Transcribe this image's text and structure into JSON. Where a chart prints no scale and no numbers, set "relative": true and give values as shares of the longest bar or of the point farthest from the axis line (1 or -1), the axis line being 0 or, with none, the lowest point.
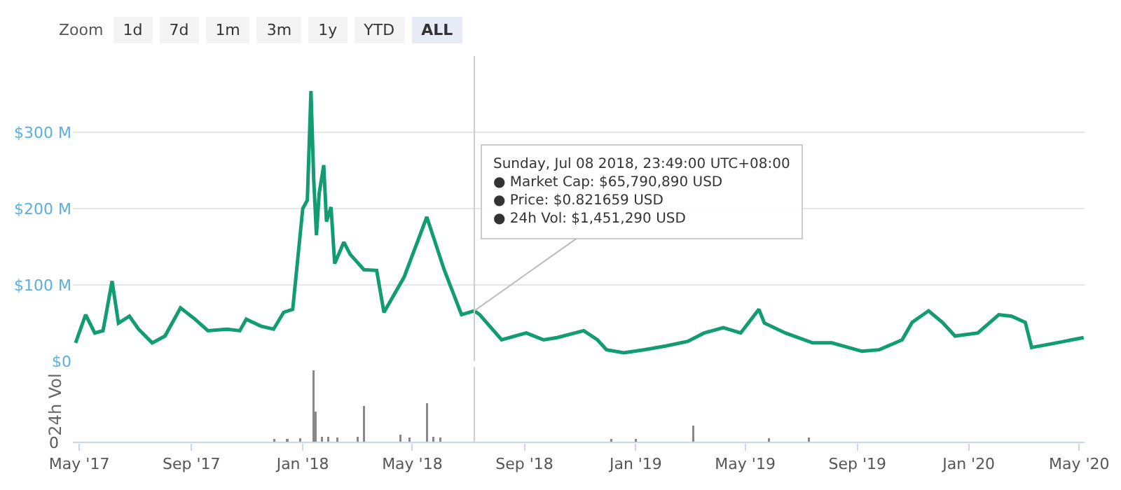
{
  "chart_data": [
    {
      "type": "line",
      "annotations": [
        "Zoom",
        "1d",
        "7d",
        "1m",
        "3m",
        "1y",
        "YTD",
        "ALL",
        {
          "text": "Sunday, Jul 08 2018, 23:49:00 UTC+08:00\n● Market Cap: $65,790,890 USD\n● Price: $0.821659 USD\n● 24h Vol: $1,451,290 USD",
          "x": "2018-07-08",
          "y": 66
        }
      ],
      "x": [
        "2017-04-27",
        "2017-05-08",
        "2017-05-18",
        "2017-05-27",
        "2017-05-30",
        "2017-06-06",
        "2017-06-13",
        "2017-06-25",
        "2017-07-05",
        "2017-07-20",
        "2017-08-03",
        "2017-08-20",
        "2017-09-05",
        "2017-09-19",
        "2017-10-10",
        "2017-10-24",
        "2017-10-31",
        "2017-11-16",
        "2017-11-30",
        "2017-12-11",
        "2017-12-21",
        "2017-12-26",
        "2018-01-01",
        "2018-01-06",
        "2018-01-10",
        "2018-01-13",
        "2018-01-16",
        "2018-01-19",
        "2018-01-24",
        "2018-01-27",
        "2018-02-01",
        "2018-02-05",
        "2018-02-15",
        "2018-02-22",
        "2018-03-09",
        "2018-03-23",
        "2018-03-31",
        "2018-04-22",
        "2018-05-17",
        "2018-06-05",
        "2018-06-24",
        "2018-07-08",
        "2018-07-14",
        "2018-08-07",
        "2018-09-03",
        "2018-09-22",
        "2018-10-07",
        "2018-11-05",
        "2018-11-20",
        "2018-11-30",
        "2018-12-19",
        "2019-01-10",
        "2019-02-03",
        "2019-02-27",
        "2019-03-17",
        "2019-04-07",
        "2019-04-26",
        "2019-05-16",
        "2019-05-22",
        "2019-06-14",
        "2019-07-14",
        "2019-08-04",
        "2019-09-06",
        "2019-09-25",
        "2019-10-20",
        "2019-10-31",
        "2019-11-18",
        "2019-12-03",
        "2019-12-17",
        "2020-01-11",
        "2020-02-03",
        "2020-02-17",
        "2020-03-03",
        "2020-03-10",
        "2020-04-06",
        "2020-05-06"
      ],
      "series": [
        {
          "color": "#119c72",
          "values": [
            24,
            61,
            37,
            40,
            59,
            105,
            50,
            59,
            42,
            24,
            33,
            70,
            55,
            40,
            42,
            40,
            55,
            46,
            42,
            64,
            68,
            128,
            200,
            211,
            354,
            239,
            165,
            220,
            257,
            183,
            202,
            128,
            156,
            140,
            120,
            119,
            64,
            110,
            189,
            120,
            61,
            66,
            61,
            28,
            37,
            28,
            31,
            40,
            28,
            15,
            11,
            15,
            20,
            26,
            37,
            44,
            37,
            68,
            50,
            37,
            24,
            24,
            13,
            15,
            28,
            51,
            66,
            51,
            33,
            37,
            61,
            59,
            51,
            18,
            24,
            31
          ]
        }
      ],
      "xlim": [
        "2017-04-24",
        "2020-05-07"
      ],
      "xticks": [
        {
          "value": "2017-05-01",
          "label": null
        },
        {
          "value": "2017-09-01",
          "label": null
        },
        {
          "value": "2018-01-01",
          "label": null
        },
        {
          "value": "2018-05-01",
          "label": null
        },
        {
          "value": "2018-09-01",
          "label": null
        },
        {
          "value": "2019-01-01",
          "label": null
        },
        {
          "value": "2019-05-01",
          "label": null
        },
        {
          "value": "2019-09-01",
          "label": null
        },
        {
          "value": "2020-01-01",
          "label": null
        },
        {
          "value": "2020-05-01",
          "label": null
        }
      ],
      "ylim": [
        0,
        400
      ],
      "yticks": [
        {
          "value": 0,
          "label": "$0"
        },
        {
          "value": 100,
          "label": "$100 M"
        },
        {
          "value": 200,
          "label": "$200 M"
        },
        {
          "value": 300,
          "label": "$300 M"
        }
      ],
      "grid": "y",
      "tick_labels": "y",
      "marker": "none",
      "ref_lines": [
        {
          "axis": "x",
          "value": "2018-07-08",
          "color": "#cccccc"
        }
      ]
    },
    {
      "type": "bar",
      "relative": true,
      "ylabel": "24h Vol",
      "annotations": [
        "0"
      ],
      "x": [
        "2017-12-01",
        "2017-12-15",
        "2017-12-29",
        "2018-01-13",
        "2018-01-15",
        "2018-01-22",
        "2018-01-29",
        "2018-02-08",
        "2018-03-02",
        "2018-03-09",
        "2018-04-18",
        "2018-04-28",
        "2018-05-17",
        "2018-05-24",
        "2018-06-01",
        "2018-12-05",
        "2019-01-01",
        "2019-03-05",
        "2019-05-27",
        "2019-07-10"
      ],
      "series": [
        {
          "color": "#888888",
          "values": [
            0.05,
            0.05,
            0.06,
            1,
            0.43,
            0.08,
            0.08,
            0.07,
            0.08,
            0.51,
            0.11,
            0.07,
            0.55,
            0.08,
            0.07,
            0.05,
            0.05,
            0.23,
            0.06,
            0.07
          ]
        }
      ],
      "xlim": [
        "2017-04-24",
        "2020-05-07"
      ],
      "xticks": [
        {
          "value": "2017-05-01",
          "label": "May '17"
        },
        {
          "value": "2017-09-01",
          "label": "Sep '17"
        },
        {
          "value": "2018-01-01",
          "label": "Jan '18"
        },
        {
          "value": "2018-05-01",
          "label": "May '18"
        },
        {
          "value": "2018-09-01",
          "label": "Sep '18"
        },
        {
          "value": "2019-01-01",
          "label": "Jan '19"
        },
        {
          "value": "2019-05-01",
          "label": "May '19"
        },
        {
          "value": "2019-09-01",
          "label": "Sep '19"
        },
        {
          "value": "2020-01-01",
          "label": "Jan '20"
        },
        {
          "value": "2020-05-01",
          "label": "May '20"
        }
      ],
      "tick_labels": "x",
      "ref_lines": [
        {
          "axis": "x",
          "value": "2018-07-08",
          "color": "#cccccc"
        }
      ]
    }
  ]
}
